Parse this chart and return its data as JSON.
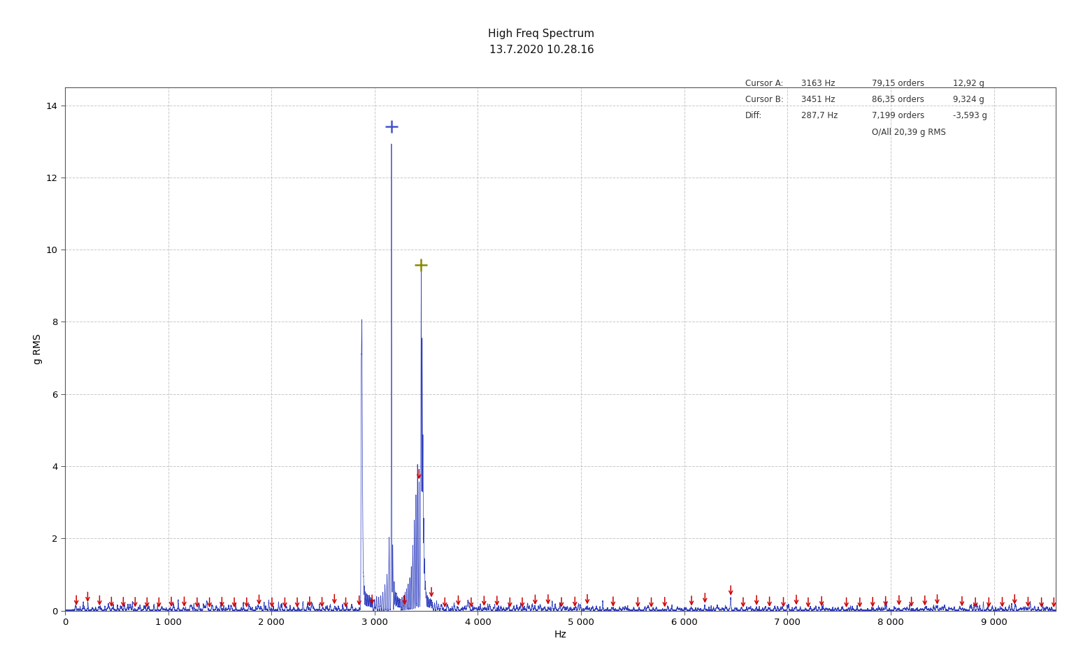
{
  "title": "High Freq Spectrum",
  "subtitle": "13.7.2020 10.28.16",
  "xlabel": "Hz",
  "ylabel": "g RMS",
  "xlim": [
    0,
    9600
  ],
  "ylim": [
    0,
    14.5
  ],
  "xticks": [
    0,
    1000,
    2000,
    3000,
    4000,
    5000,
    6000,
    7000,
    8000,
    9000
  ],
  "yticks": [
    0,
    2,
    4,
    6,
    8,
    10,
    12,
    14
  ],
  "cursor_a_hz": 3163,
  "cursor_a_g": 12.92,
  "cursor_b_hz": 3451,
  "cursor_b_g": 9.324,
  "cursor_a_color": "#4455cc",
  "cursor_b_color": "#888800",
  "info_rows": [
    [
      "Cursor A:",
      "3163 Hz",
      "79,15 orders",
      "12,92 g"
    ],
    [
      "Cursor B:",
      "3451 Hz",
      "86,35 orders",
      "9,324 g"
    ],
    [
      "Diff:",
      "287,7 Hz",
      "7,199 orders",
      "-3,593 g"
    ]
  ],
  "overall": "O/All 20,39 g RMS",
  "background_color": "#ffffff",
  "grid_color": "#bbbbbb",
  "spectrum_color": "#2233bb",
  "arrow_color": "#cc0000",
  "noise_floor": 0.018,
  "red_arrow_freqs": [
    110,
    220,
    335,
    450,
    565,
    680,
    795,
    910,
    1030,
    1155,
    1280,
    1400,
    1520,
    1640,
    1760,
    1880,
    2005,
    2130,
    2250,
    2370,
    2490,
    2610,
    2720,
    2850,
    2975,
    3290,
    3430,
    3550,
    3680,
    3810,
    3935,
    4060,
    4185,
    4310,
    4430,
    4555,
    4680,
    4810,
    4940,
    5060,
    5310,
    5550,
    5680,
    5810,
    6070,
    6200,
    6450,
    6570,
    6700,
    6825,
    6960,
    7085,
    7200,
    7330,
    7570,
    7700,
    7825,
    7950,
    8080,
    8200,
    8330,
    8450,
    8690,
    8820,
    8950,
    9080,
    9200,
    9330,
    9460,
    9580
  ],
  "defined_peaks": [
    [
      2870,
      6.0
    ],
    [
      2875,
      5.2
    ],
    [
      2878,
      3.8
    ],
    [
      2882,
      2.2
    ],
    [
      2886,
      1.4
    ],
    [
      2892,
      0.9
    ],
    [
      2900,
      0.6
    ],
    [
      2910,
      0.5
    ],
    [
      2920,
      0.45
    ],
    [
      2930,
      0.42
    ],
    [
      2940,
      0.4
    ],
    [
      2950,
      0.38
    ],
    [
      2960,
      0.35
    ],
    [
      2970,
      0.32
    ],
    [
      2980,
      0.3
    ],
    [
      3000,
      0.28
    ],
    [
      3020,
      0.3
    ],
    [
      3040,
      0.35
    ],
    [
      3060,
      0.4
    ],
    [
      3080,
      0.5
    ],
    [
      3100,
      0.7
    ],
    [
      3120,
      1.0
    ],
    [
      3140,
      2.0
    ],
    [
      3163,
      12.92
    ],
    [
      3175,
      1.8
    ],
    [
      3190,
      0.8
    ],
    [
      3200,
      0.5
    ],
    [
      3210,
      0.4
    ],
    [
      3220,
      0.38
    ],
    [
      3230,
      0.35
    ],
    [
      3240,
      0.32
    ],
    [
      3250,
      0.3
    ],
    [
      3265,
      0.35
    ],
    [
      3280,
      0.4
    ],
    [
      3295,
      0.5
    ],
    [
      3310,
      0.6
    ],
    [
      3325,
      0.7
    ],
    [
      3340,
      0.9
    ],
    [
      3355,
      1.2
    ],
    [
      3370,
      1.8
    ],
    [
      3385,
      2.5
    ],
    [
      3400,
      3.2
    ],
    [
      3415,
      4.0
    ],
    [
      3430,
      3.55
    ],
    [
      3445,
      2.2
    ],
    [
      3451,
      9.324
    ],
    [
      3460,
      7.5
    ],
    [
      3468,
      4.8
    ],
    [
      3476,
      2.5
    ],
    [
      3484,
      1.4
    ],
    [
      3492,
      0.8
    ],
    [
      3500,
      0.5
    ],
    [
      3510,
      0.4
    ],
    [
      3520,
      0.35
    ],
    [
      3530,
      0.3
    ],
    [
      3540,
      0.28
    ],
    [
      3550,
      0.25
    ],
    [
      3560,
      0.22
    ],
    [
      3580,
      0.2
    ],
    [
      3600,
      0.18
    ],
    [
      3620,
      0.15
    ],
    [
      3650,
      0.13
    ],
    [
      3700,
      0.12
    ],
    [
      3750,
      0.1
    ],
    [
      3800,
      0.09
    ],
    [
      3850,
      0.08
    ],
    [
      3900,
      0.07
    ],
    [
      3950,
      0.06
    ],
    [
      4000,
      0.07
    ],
    [
      4050,
      0.06
    ],
    [
      4100,
      0.08
    ],
    [
      4150,
      0.07
    ],
    [
      4200,
      0.06
    ],
    [
      4250,
      0.07
    ],
    [
      4300,
      0.08
    ],
    [
      4350,
      0.07
    ],
    [
      4400,
      0.06
    ],
    [
      4450,
      0.07
    ],
    [
      4500,
      0.08
    ],
    [
      4550,
      0.07
    ],
    [
      4600,
      0.06
    ],
    [
      4650,
      0.07
    ],
    [
      4700,
      0.08
    ],
    [
      4750,
      0.07
    ],
    [
      4800,
      0.06
    ],
    [
      4850,
      0.07
    ],
    [
      4900,
      0.08
    ],
    [
      4950,
      0.07
    ],
    [
      5000,
      0.06
    ],
    [
      5050,
      0.07
    ],
    [
      5100,
      0.06
    ]
  ],
  "small_peak_regions": [
    [
      100,
      2800,
      0.06,
      0.18,
      40
    ],
    [
      3600,
      5200,
      0.04,
      0.12,
      35
    ],
    [
      5200,
      9600,
      0.03,
      0.1,
      45
    ]
  ]
}
